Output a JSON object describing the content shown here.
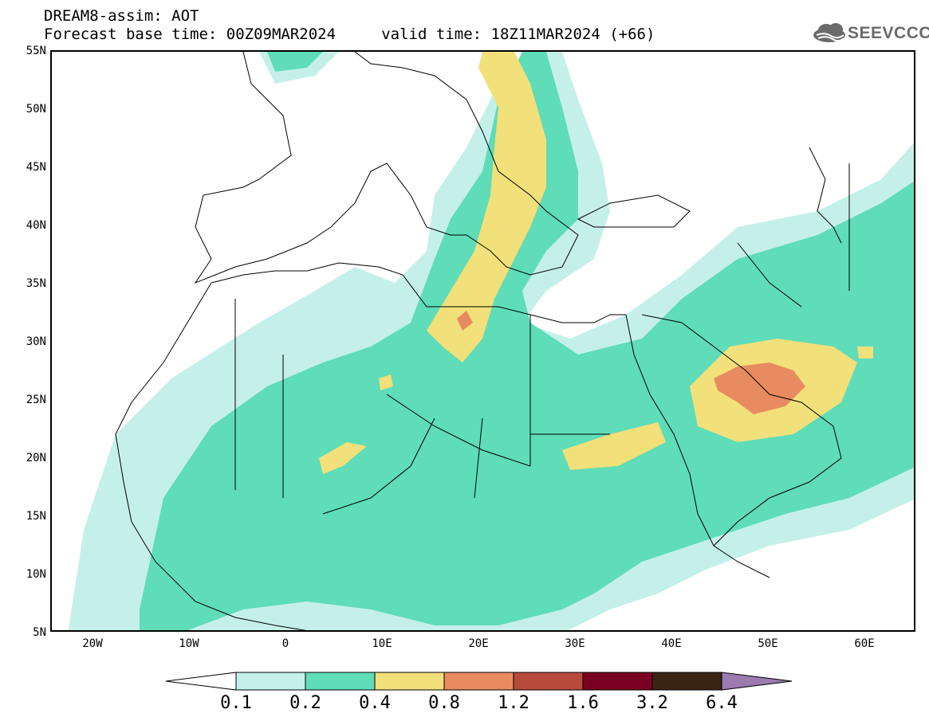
{
  "title": {
    "line1": "DREAM8-assim: AOT",
    "line2": "Forecast base time: 00Z09MAR2024     valid time: 18Z11MAR2024 (+66)"
  },
  "logo": {
    "text": "SEEVCCC",
    "icon": "cloud-icon",
    "color": "#6a6a6a"
  },
  "map": {
    "type": "aerosol optical thickness map",
    "lat_range": [
      5,
      55
    ],
    "lon_range": [
      -25,
      65
    ],
    "lat_labels": [
      "55N",
      "50N",
      "45N",
      "40N",
      "35N",
      "30N",
      "25N",
      "20N",
      "15N",
      "10N",
      "5N"
    ],
    "lon_labels": [
      "20W",
      "10W",
      "0",
      "10E",
      "20E",
      "30E",
      "40E",
      "50E",
      "60E"
    ]
  },
  "colorbar": {
    "colors": [
      "#ffffff",
      "#c5f0ea",
      "#5fdcb8",
      "#f2e07a",
      "#e98b60",
      "#b84a3c",
      "#7a0020",
      "#3a2414",
      "#9b7bb0"
    ],
    "labels": [
      "0.1",
      "0.2",
      "0.4",
      "0.8",
      "1.2",
      "1.6",
      "3.2",
      "6.4"
    ]
  }
}
